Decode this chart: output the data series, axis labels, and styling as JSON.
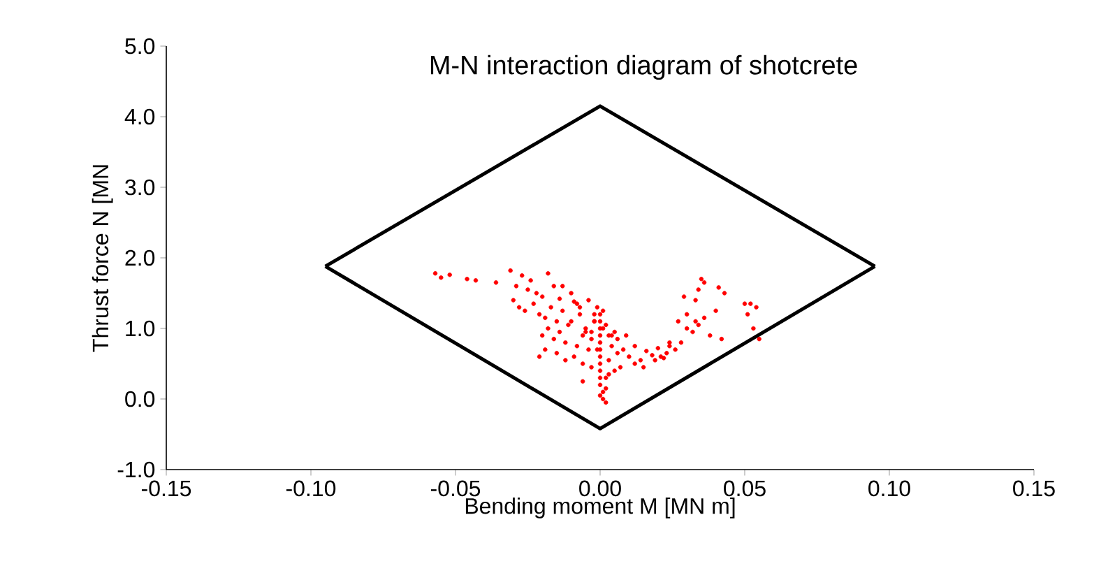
{
  "chart_data": {
    "type": "scatter",
    "title": "M-N interaction diagram of shotcrete",
    "xlabel": "Bending moment M [MN m]",
    "ylabel": "Thrust force N [MN",
    "xlim": [
      -0.15,
      0.15
    ],
    "ylim": [
      -1.0,
      5.0
    ],
    "xticks": [
      {
        "value": -0.15,
        "label": "-0.15"
      },
      {
        "value": -0.1,
        "label": "-0.10"
      },
      {
        "value": -0.05,
        "label": "-0.05"
      },
      {
        "value": 0,
        "label": "0.00"
      },
      {
        "value": 0.05,
        "label": "0.05"
      },
      {
        "value": 0.1,
        "label": "0.10"
      },
      {
        "value": 0.15,
        "label": "0.15"
      }
    ],
    "yticks": [
      {
        "value": -1,
        "label": "-1.0"
      },
      {
        "value": 0,
        "label": "0.0"
      },
      {
        "value": 1,
        "label": "1.0"
      },
      {
        "value": 2,
        "label": "2.0"
      },
      {
        "value": 3,
        "label": "3.0"
      },
      {
        "value": 4,
        "label": "4.0"
      },
      {
        "value": 5,
        "label": "5.0"
      }
    ],
    "grid": false,
    "series": [
      {
        "type": "line",
        "color": "#000000",
        "marker": "none",
        "x": [
          -0.095,
          0,
          0.095
        ],
        "values": [
          1.88,
          4.15,
          1.88
        ]
      },
      {
        "type": "line",
        "color": "#000000",
        "marker": "none",
        "x": [
          -0.095,
          0,
          0.095
        ],
        "values": [
          1.88,
          -0.42,
          1.88
        ]
      },
      {
        "color": "#ff0000",
        "marker": "circle",
        "x": [
          -0.057,
          -0.052,
          -0.046,
          -0.043,
          -0.055,
          -0.036,
          -0.031,
          -0.029,
          -0.027,
          -0.025,
          -0.024,
          -0.022,
          -0.02,
          -0.018,
          -0.016,
          -0.014,
          -0.03,
          -0.028,
          -0.026,
          -0.023,
          -0.021,
          -0.019,
          -0.017,
          -0.015,
          -0.013,
          -0.011,
          -0.009,
          -0.007,
          -0.005,
          -0.02,
          -0.018,
          -0.016,
          -0.014,
          -0.012,
          -0.01,
          -0.008,
          -0.006,
          -0.004,
          -0.002,
          -0.021,
          -0.019,
          -0.015,
          -0.012,
          -0.009,
          -0.006,
          -0.003,
          -0.013,
          -0.01,
          -0.007,
          -0.004,
          -0.002,
          -0.008,
          -0.005,
          -0.003,
          -0.001,
          -0.001,
          0,
          0,
          0,
          0,
          0,
          0,
          0,
          0,
          0,
          0,
          0,
          0.001,
          0.001,
          0.002,
          0.002,
          0.003,
          0.003,
          0.004,
          0.005,
          0.002,
          0.001,
          0.006,
          0.008,
          0.01,
          0.012,
          0.014,
          0.016,
          0.018,
          0.02,
          0.022,
          0.024,
          0.006,
          0.009,
          0.012,
          0.015,
          0.019,
          0.023,
          0.026,
          0.028,
          0.021,
          0.024,
          0.027,
          0.03,
          0.032,
          0.034,
          0.036,
          0.038,
          0.03,
          0.033,
          0.035,
          0.036,
          0.034,
          0.041,
          0.043,
          0.05,
          0.051,
          0.053,
          0.055,
          0.054,
          0.052,
          0.029,
          0.033,
          0.04,
          0.042,
          0.003,
          0.004,
          -0.003,
          -0.006,
          0.007,
          0.005,
          0.002,
          0.001,
          -0.002,
          0.0
        ],
        "values": [
          1.78,
          1.76,
          1.7,
          1.68,
          1.72,
          1.65,
          1.82,
          1.6,
          1.75,
          1.55,
          1.68,
          1.5,
          1.45,
          1.78,
          1.6,
          1.42,
          1.4,
          1.3,
          1.25,
          1.35,
          1.2,
          1.15,
          1.3,
          1.1,
          1.25,
          1.05,
          1.38,
          1.2,
          1.0,
          0.9,
          1.0,
          0.85,
          0.95,
          0.8,
          1.1,
          0.75,
          0.9,
          0.7,
          1.2,
          0.6,
          0.7,
          0.65,
          0.55,
          0.6,
          0.5,
          0.45,
          1.6,
          1.5,
          1.3,
          1.4,
          1.1,
          1.35,
          0.95,
          0.85,
          0.7,
          1.3,
          1.2,
          1.1,
          1.0,
          0.9,
          0.8,
          0.7,
          0.6,
          0.5,
          0.4,
          0.3,
          0.2,
          0.1,
          0.0,
          -0.05,
          0.15,
          0.35,
          0.55,
          0.75,
          0.95,
          1.05,
          1.25,
          0.65,
          0.7,
          0.6,
          0.75,
          0.55,
          0.68,
          0.62,
          0.72,
          0.58,
          0.8,
          0.85,
          0.9,
          0.5,
          0.45,
          0.55,
          0.65,
          0.7,
          0.8,
          0.6,
          0.75,
          1.1,
          1.2,
          0.95,
          1.05,
          1.15,
          0.9,
          1.0,
          1.1,
          1.7,
          1.65,
          1.55,
          1.58,
          1.5,
          1.35,
          1.2,
          1.0,
          0.85,
          1.3,
          1.35,
          1.45,
          1.4,
          1.25,
          0.85,
          0.9,
          0.9,
          0.95,
          0.25,
          0.45,
          0.4,
          0.3,
          1.0,
          1.1,
          0.05
        ]
      }
    ]
  }
}
